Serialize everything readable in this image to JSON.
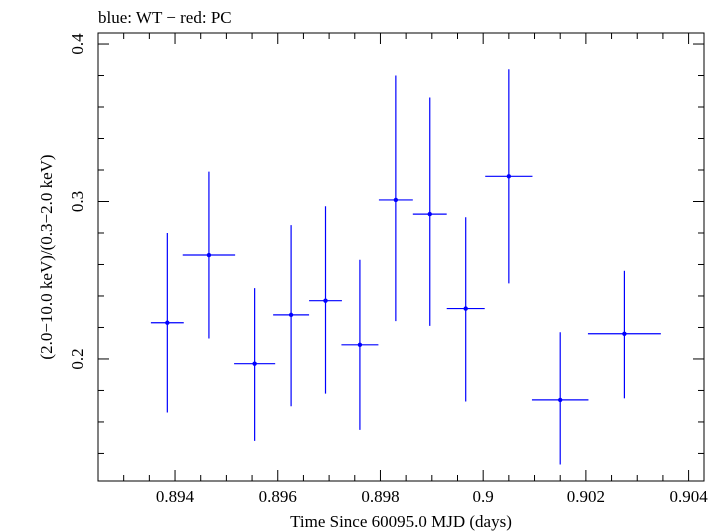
{
  "chart_data": {
    "type": "scatter",
    "title": "blue: WT − red: PC",
    "xlabel": "Time Since 60095.0 MJD (days)",
    "ylabel": "(2.0−10.0 keV)/(0.3−2.0 keV)",
    "xlim": [
      0.8925,
      0.9043
    ],
    "ylim": [
      0.1225,
      0.407
    ],
    "xticks": [
      {
        "value": 0.894,
        "label": "0.894"
      },
      {
        "value": 0.896,
        "label": "0.896"
      },
      {
        "value": 0.898,
        "label": "0.898"
      },
      {
        "value": 0.9,
        "label": "0.9"
      },
      {
        "value": 0.902,
        "label": "0.902"
      },
      {
        "value": 0.904,
        "label": "0.904"
      }
    ],
    "yticks": [
      {
        "value": 0.2,
        "label": "0.2"
      },
      {
        "value": 0.3,
        "label": "0.3"
      },
      {
        "value": 0.4,
        "label": "0.4"
      }
    ],
    "grid": false,
    "series": [
      {
        "color": "#0000ff",
        "points": [
          {
            "x": 0.89385,
            "y": 0.223,
            "xerr": 0.00032,
            "ylo": 0.166,
            "yhi": 0.28
          },
          {
            "x": 0.89466,
            "y": 0.266,
            "xerr": 0.00051,
            "ylo": 0.213,
            "yhi": 0.319
          },
          {
            "x": 0.89555,
            "y": 0.197,
            "xerr": 0.0004,
            "ylo": 0.148,
            "yhi": 0.245
          },
          {
            "x": 0.89626,
            "y": 0.228,
            "xerr": 0.00035,
            "ylo": 0.17,
            "yhi": 0.285
          },
          {
            "x": 0.89693,
            "y": 0.237,
            "xerr": 0.00032,
            "ylo": 0.178,
            "yhi": 0.297
          },
          {
            "x": 0.8976,
            "y": 0.209,
            "xerr": 0.00036,
            "ylo": 0.155,
            "yhi": 0.263
          },
          {
            "x": 0.8983,
            "y": 0.301,
            "xerr": 0.00033,
            "ylo": 0.224,
            "yhi": 0.38
          },
          {
            "x": 0.89896,
            "y": 0.292,
            "xerr": 0.00033,
            "ylo": 0.221,
            "yhi": 0.366
          },
          {
            "x": 0.89966,
            "y": 0.232,
            "xerr": 0.00037,
            "ylo": 0.173,
            "yhi": 0.29
          },
          {
            "x": 0.9005,
            "y": 0.316,
            "xerr": 0.00046,
            "ylo": 0.248,
            "yhi": 0.384
          },
          {
            "x": 0.9015,
            "y": 0.174,
            "xerr": 0.00055,
            "ylo": 0.133,
            "yhi": 0.217
          },
          {
            "x": 0.90275,
            "y": 0.216,
            "xerr": 0.00071,
            "ylo": 0.175,
            "yhi": 0.256
          }
        ]
      }
    ]
  }
}
